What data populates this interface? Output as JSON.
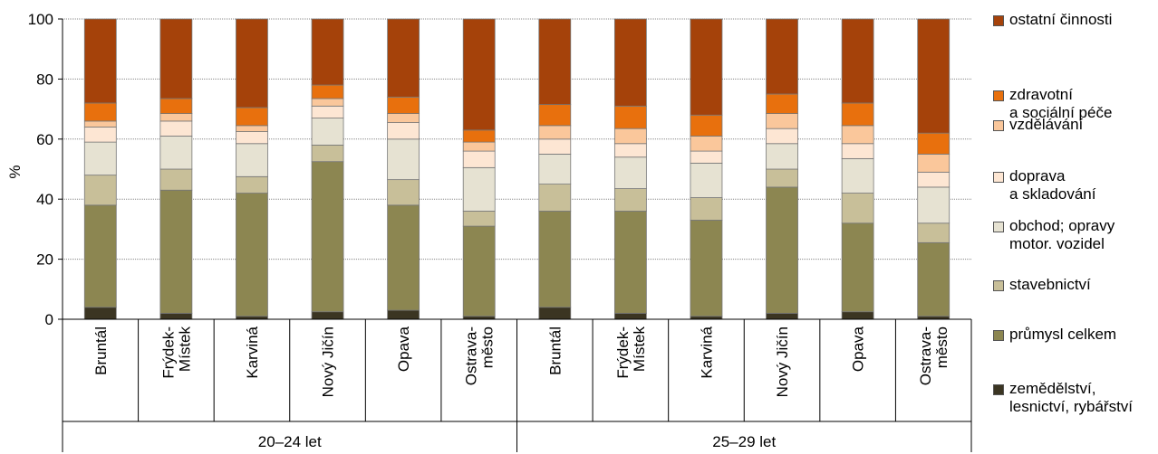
{
  "chart_data": {
    "type": "bar",
    "stacked": true,
    "ylabel": "%",
    "ylim": [
      0,
      100
    ],
    "yticks": [
      0,
      20,
      40,
      60,
      80,
      100
    ],
    "grid": true,
    "legend_position": "right",
    "groups": [
      {
        "label": "20–24 let",
        "categories": [
          "Bruntál",
          "Frýdek-\nMístek",
          "Karviná",
          "Nový Jičín",
          "Opava",
          "Ostrava-\nměsto"
        ]
      },
      {
        "label": "25–29 let",
        "categories": [
          "Bruntál",
          "Frýdek-\nMístek",
          "Karviná",
          "Nový Jičín",
          "Opava",
          "Ostrava-\nměsto"
        ]
      }
    ],
    "series": [
      {
        "name": "zemědělství,\nlesnictví, rybářství",
        "color": "#3b3522",
        "values": [
          4,
          2,
          1,
          2.5,
          3,
          1,
          4,
          2,
          1,
          2,
          2.5,
          1
        ]
      },
      {
        "name": "průmysl celkem",
        "color": "#8c8651",
        "values": [
          34,
          41,
          41,
          50,
          35,
          30,
          32,
          34,
          32,
          42,
          29.5,
          24.5
        ]
      },
      {
        "name": "stavebnictví",
        "color": "#c8bf99",
        "values": [
          10,
          7,
          5.5,
          5.5,
          8.5,
          5,
          9,
          7.5,
          7.5,
          6,
          10,
          6.5
        ]
      },
      {
        "name": "obchod; opravy\nmotor. vozidel",
        "color": "#e6e2d2",
        "values": [
          11,
          11,
          11,
          9,
          13.5,
          14.5,
          10,
          10.5,
          11.5,
          8.5,
          11.5,
          12
        ]
      },
      {
        "name": "doprava\na skladování",
        "color": "#fde6d3",
        "values": [
          5,
          5,
          4,
          4,
          5.5,
          5.5,
          5,
          4.5,
          4,
          5,
          5,
          5
        ]
      },
      {
        "name": "vzdělávání",
        "color": "#fac79b",
        "values": [
          2,
          2.5,
          2,
          2.5,
          3,
          3,
          4.5,
          5,
          5,
          5,
          6,
          6
        ]
      },
      {
        "name": "zdravotní\na sociální péče",
        "color": "#e8700d",
        "values": [
          6,
          5,
          6,
          4.5,
          5.5,
          4,
          7,
          7.5,
          7,
          6.5,
          7.5,
          7
        ]
      },
      {
        "name": "ostatní činnosti",
        "color": "#a5420a",
        "values": [
          28,
          26.5,
          29.5,
          22,
          26,
          37,
          28.5,
          29,
          32,
          25,
          28,
          38
        ]
      }
    ]
  }
}
